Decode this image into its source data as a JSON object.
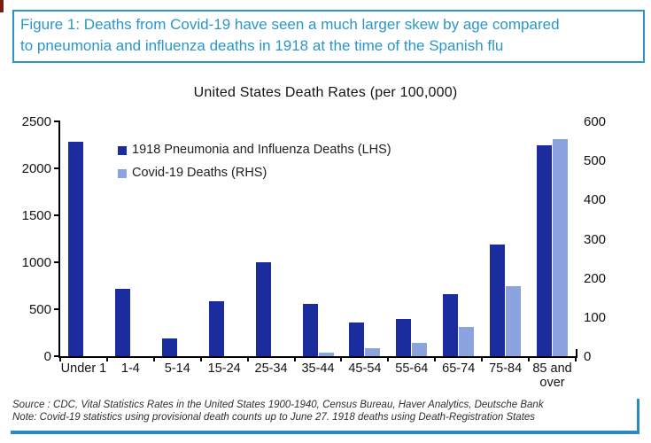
{
  "header": {
    "line1": "Figure 1: Deaths from Covid-19 have seen a much larger skew by age compared",
    "line2": "to pneumonia and influenza deaths in 1918 at the time of the Spanish flu",
    "accent_color": "#2b96c9"
  },
  "chart_data": {
    "type": "bar",
    "title": "United States Death Rates (per 100,000)",
    "categories": [
      "Under 1",
      "1-4",
      "5-14",
      "15-24",
      "25-34",
      "35-44",
      "45-54",
      "55-64",
      "65-74",
      "75-84",
      "85 and over"
    ],
    "series": [
      {
        "name": "1918 Pneumonia and Influenza Deaths (LHS)",
        "axis": "left",
        "color": "#1b2d9e",
        "values": [
          2280,
          720,
          185,
          585,
          1000,
          555,
          355,
          400,
          660,
          1190,
          2250
        ]
      },
      {
        "name": "Covid-19 Deaths (RHS)",
        "axis": "right",
        "color": "#8ba4df",
        "values": [
          0,
          0,
          0,
          0,
          0,
          10,
          20,
          35,
          75,
          180,
          555
        ]
      }
    ],
    "left_axis": {
      "min": 0,
      "max": 2500,
      "ticks": [
        0,
        500,
        1000,
        1500,
        2000,
        2500
      ]
    },
    "right_axis": {
      "min": 0,
      "max": 600,
      "ticks": [
        0,
        100,
        200,
        300,
        400,
        500,
        600
      ]
    },
    "grid": false,
    "legend_position": "inside-top-left"
  },
  "footer": {
    "source": "Source : CDC, Vital Statistics Rates in the United States 1900-1940, Census Bureau, Haver Analytics, Deutsche Bank",
    "note": "Note: Covid-19 statistics using provisional death counts up to June 27. 1918 deaths using Death-Registration States",
    "rule_color": "#2b8ac2"
  }
}
